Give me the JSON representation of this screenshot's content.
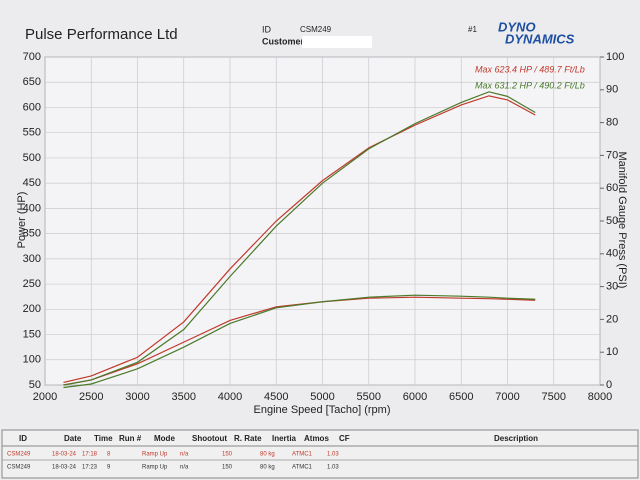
{
  "header": {
    "company": "Pulse Performance Ltd",
    "id_label": "ID",
    "id": "CSM249",
    "customer_label": "Customer",
    "run_no": "#1",
    "logo_top": "DYNO",
    "logo_bottom": "DYNAMICS"
  },
  "chart_data": {
    "type": "line",
    "x_label": "Engine Speed [Tacho] (rpm)",
    "y_label": "Power (HP)",
    "y2_label": "Manifold Gauge Press (PSI)",
    "x": [
      2200,
      2500,
      3000,
      3500,
      4000,
      4500,
      5000,
      5500,
      6000,
      6500,
      6800,
      7000,
      7300
    ],
    "series": [
      {
        "name": "Max 623.4 HP  / 489.7 Ft/Lb",
        "color": "#c0392b",
        "values": [
          55,
          68,
          105,
          175,
          280,
          375,
          455,
          520,
          565,
          605,
          623,
          615,
          585
        ],
        "torque": [
          50,
          60,
          92,
          135,
          178,
          205,
          215,
          222,
          224,
          222,
          221,
          220,
          218
        ]
      },
      {
        "name": "Max 631.2 HP  / 490.2 Ft/Lb",
        "color": "#4a7a2a",
        "values": [
          50,
          60,
          95,
          160,
          265,
          365,
          450,
          518,
          568,
          610,
          631,
          622,
          590
        ],
        "torque": [
          45,
          52,
          82,
          125,
          172,
          203,
          215,
          224,
          228,
          226,
          224,
          222,
          220
        ]
      }
    ],
    "xlim": [
      2000,
      8000
    ],
    "xticks": [
      2000,
      2500,
      3000,
      3500,
      4000,
      4500,
      5000,
      5500,
      6000,
      6500,
      7000,
      7500,
      8000
    ],
    "ylim": [
      50,
      700
    ],
    "yticks": [
      50,
      100,
      150,
      200,
      250,
      300,
      350,
      400,
      450,
      500,
      550,
      600,
      650,
      700
    ],
    "y2lim": [
      0,
      100
    ],
    "y2ticks": [
      0,
      10,
      20,
      30,
      40,
      50,
      60,
      70,
      80,
      90,
      100
    ],
    "grid": true
  },
  "table": {
    "columns": [
      "ID",
      "Date",
      "Time",
      "Run #",
      "Mode",
      "Shootout",
      "R. Rate",
      "Inertia",
      "Atmos",
      "CF",
      "Description"
    ],
    "rows": [
      [
        "CSM249",
        "18-03-24",
        "17:18",
        "8",
        "Ramp Up",
        "n/a",
        "150",
        "80 kg",
        "ATMC1",
        "1.03"
      ],
      [
        "CSM249",
        "18-03-24",
        "17:23",
        "9",
        "Ramp Up",
        "n/a",
        "150",
        "80 kg",
        "ATMC1",
        "1.03"
      ]
    ]
  }
}
